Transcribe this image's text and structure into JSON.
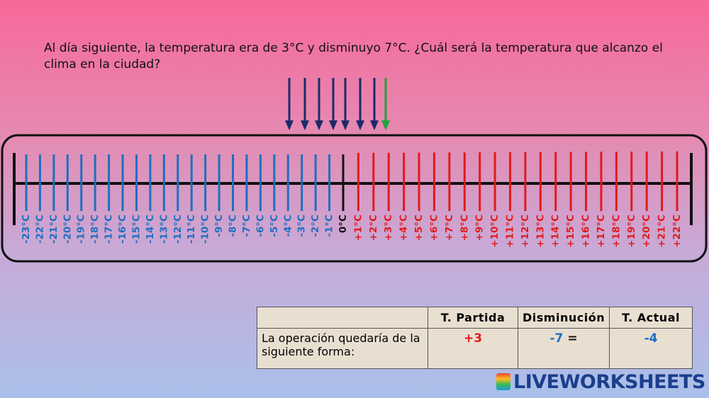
{
  "question": "Al día siguiente, la temperatura era de 3°C y disminuyo 7°C. ¿Cuál será la temperatura que alcanzo el clima en la ciudad?",
  "number_line": {
    "labels": [
      "-23°C",
      "-22°C",
      "-21°C",
      "-20°C",
      "-19°C",
      "-18°C",
      "-17°C",
      "-16°C",
      "-15°C",
      "-14°C",
      "-13°C",
      "-12°C",
      "-11°C",
      "-10°C",
      "-9°C",
      "-8°C",
      "-7°C",
      "-6°C",
      "-5°C",
      "-4°C",
      "-3°C",
      "-2°C",
      "-1°C",
      "0°C",
      "+1°C",
      "+2°C",
      "+3°C",
      "+4°C",
      "+5°C",
      "+6°C",
      "+7°C",
      "+8°C",
      "+9°C",
      "+10°C",
      "+11°C",
      "+12°C",
      "+13°C",
      "+14°C",
      "+15°C",
      "+16°C",
      "+17°C",
      "+18°C",
      "+19°C",
      "+20°C",
      "+21°C",
      "+22°C"
    ]
  },
  "table": {
    "header": [
      "T. Partida",
      "Disminución",
      "T. Actual"
    ],
    "rows": [
      [
        "La operación quedaría de la siguiente forma:",
        "+3",
        [
          "-7",
          "="
        ],
        "-4"
      ]
    ]
  },
  "logo": "LIVEWORKSHEETS"
}
